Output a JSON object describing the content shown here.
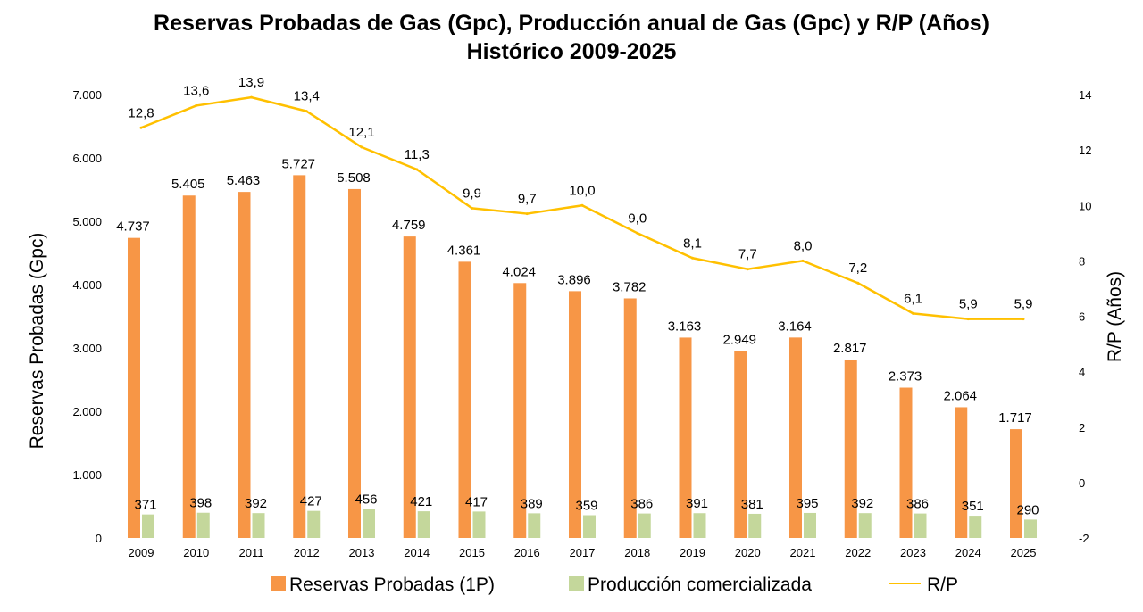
{
  "chart_data": {
    "type": "bar",
    "title_line1": "Reservas Probadas de Gas (Gpc), Producción anual de Gas (Gpc) y R/P (Años)",
    "title_line2": "Histórico 2009-2025",
    "ylabel": "Reservas Probadas (Gpc)",
    "y2label": "R/P (Años)",
    "ylim": [
      0,
      7000
    ],
    "y2lim": [
      -2,
      14
    ],
    "yticks": [
      "0",
      "1.000",
      "2.000",
      "3.000",
      "4.000",
      "5.000",
      "6.000",
      "7.000"
    ],
    "y2ticks": [
      "-2",
      "0",
      "2",
      "4",
      "6",
      "8",
      "10",
      "12",
      "14"
    ],
    "categories": [
      "2009",
      "2010",
      "2011",
      "2012",
      "2013",
      "2014",
      "2015",
      "2016",
      "2017",
      "2018",
      "2019",
      "2020",
      "2021",
      "2022",
      "2023",
      "2024",
      "2025"
    ],
    "series": [
      {
        "name": "Reservas Probadas (1P)",
        "type": "bar",
        "color": "#F79646",
        "values": [
          4737,
          5405,
          5463,
          5727,
          5508,
          4759,
          4361,
          4024,
          3896,
          3782,
          3163,
          2949,
          3164,
          2817,
          2373,
          2064,
          1717
        ],
        "labels": [
          "4.737",
          "5.405",
          "5.463",
          "5.727",
          "5.508",
          "4.759",
          "4.361",
          "4.024",
          "3.896",
          "3.782",
          "3.163",
          "2.949",
          "3.164",
          "2.817",
          "2.373",
          "2.064",
          "1.717"
        ]
      },
      {
        "name": "Producción comercializada",
        "type": "bar",
        "color": "#C4D79B",
        "values": [
          371,
          398,
          392,
          427,
          456,
          421,
          417,
          389,
          359,
          386,
          391,
          381,
          395,
          392,
          386,
          351,
          290
        ],
        "labels": [
          "371",
          "398",
          "392",
          "427",
          "456",
          "421",
          "417",
          "389",
          "359",
          "386",
          "391",
          "381",
          "395",
          "392",
          "386",
          "351",
          "290"
        ]
      },
      {
        "name": "R/P",
        "type": "line",
        "axis": "secondary",
        "color": "#FFC000",
        "values": [
          12.8,
          13.6,
          13.9,
          13.4,
          12.1,
          11.3,
          9.9,
          9.7,
          10.0,
          9.0,
          8.1,
          7.7,
          8.0,
          7.2,
          6.1,
          5.9,
          5.9
        ],
        "labels": [
          "12,8",
          "13,6",
          "13,9",
          "13,4",
          "12,1",
          "11,3",
          "9,9",
          "9,7",
          "10,0",
          "9,0",
          "8,1",
          "7,7",
          "8,0",
          "7,2",
          "6,1",
          "5,9",
          "5,9"
        ]
      }
    ],
    "grid": false,
    "legend_position": "bottom"
  }
}
